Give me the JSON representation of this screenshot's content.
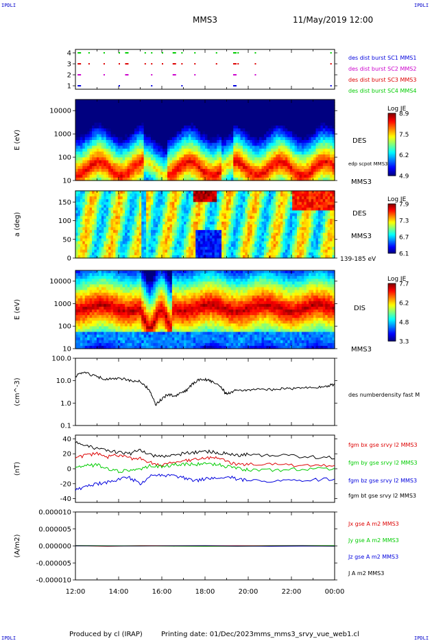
{
  "header": {
    "corner_label": "IPDLI",
    "spacecraft": "MMS3",
    "date_time": "11/May/2019 12:00"
  },
  "footer": {
    "produced_by": "Produced by cl (IRAP)",
    "printing_date": "Printing date: 01/Dec/2023",
    "filename": "mms_mms3_srvy_vue_web1.cl"
  },
  "colors": {
    "black": "#000000",
    "red": "#dd0000",
    "green": "#00cc00",
    "blue": "#0000dd",
    "magenta": "#cc00cc"
  },
  "chart_data": [
    {
      "panel": "burst",
      "type": "scatter",
      "x_ticks": [
        "12:00",
        "14:00",
        "16:00",
        "18:00",
        "20:00",
        "22:00",
        "00:00"
      ],
      "yticks": [
        "1",
        "2",
        "3",
        "4"
      ],
      "legend": [
        {
          "label": "des dist burst SC1 MMS1",
          "color": "#0000dd"
        },
        {
          "label": "des dist burst SC2 MMS2",
          "color": "#cc00cc"
        },
        {
          "label": "des dist burst SC3 MMS3",
          "color": "#dd0000"
        },
        {
          "label": "des dist burst SC4 MMS4",
          "color": "#00cc00"
        }
      ],
      "bursts_hours": [
        12.1,
        12.6,
        13.3,
        14.0,
        14.3,
        15.2,
        15.5,
        16.0,
        16.5,
        16.9,
        17.5,
        18.5,
        19.3,
        19.5,
        20.3,
        23.8
      ]
    },
    {
      "panel": "des_energy",
      "type": "heatmap",
      "ylabel": "E (eV)",
      "scale": "log",
      "yticks": [
        "10000",
        "1000",
        "100",
        "10"
      ],
      "ylim": [
        10,
        30000
      ],
      "label_right": "DES",
      "overlay_label": "edp scpot MMS3",
      "sc_label": "MMS3",
      "colorbar": {
        "title": "Log JE",
        "ticks": [
          "8.9",
          "7.5",
          "6.2",
          "4.9"
        ]
      }
    },
    {
      "panel": "des_pitch",
      "type": "heatmap",
      "ylabel": "a (deg)",
      "yticks": [
        "150",
        "100",
        "50",
        "0"
      ],
      "ylim": [
        0,
        180
      ],
      "label_right": "DES",
      "sc_label": "MMS3",
      "energy_range": "139-185 eV",
      "colorbar": {
        "title": "Log JE",
        "ticks": [
          "7.9",
          "7.3",
          "6.7",
          "6.1"
        ]
      }
    },
    {
      "panel": "dis_energy",
      "type": "heatmap",
      "ylabel": "E (eV)",
      "scale": "log",
      "yticks": [
        "10000",
        "1000",
        "100",
        "10"
      ],
      "ylim": [
        10,
        30000
      ],
      "label_right": "DIS",
      "sc_label": "MMS3",
      "colorbar": {
        "title": "Log JE",
        "ticks": [
          "7.7",
          "6.2",
          "4.8",
          "3.3"
        ]
      }
    },
    {
      "panel": "density",
      "type": "line",
      "ylabel": "(cm^-3)",
      "scale": "log",
      "yticks": [
        "100.0",
        "10.0",
        "1.0",
        "0.1"
      ],
      "ylim": [
        0.1,
        100
      ],
      "series": [
        {
          "name": "des numberdensity fast M",
          "color": "#000000",
          "x": [
            12.0,
            12.3,
            12.6,
            13.0,
            13.4,
            13.8,
            14.2,
            14.6,
            15.0,
            15.3,
            15.5,
            15.7,
            16.0,
            16.3,
            16.6,
            16.9,
            17.2,
            17.5,
            17.8,
            18.1,
            18.4,
            18.7,
            18.9,
            19.0,
            19.2,
            19.5,
            19.9,
            20.3,
            20.8,
            21.3,
            21.8,
            22.3,
            22.8,
            23.3,
            23.7,
            24.0
          ],
          "y": [
            15,
            22,
            20,
            15,
            12,
            13,
            12,
            10,
            9,
            5,
            2.5,
            0.8,
            1.5,
            2.5,
            2,
            3,
            4,
            8,
            12,
            11,
            8,
            6,
            3,
            2.5,
            3,
            4,
            3.5,
            3.8,
            4,
            4.2,
            4.5,
            4.5,
            4.8,
            5,
            6,
            7
          ]
        }
      ]
    },
    {
      "panel": "bfield",
      "type": "line",
      "ylabel": "(nT)",
      "yticks": [
        "40",
        "20",
        "0",
        "-20",
        "-40"
      ],
      "ylim": [
        -45,
        45
      ],
      "series": [
        {
          "name": "fgm bx gse srvy l2 MMS3",
          "color": "#dd0000",
          "x": [
            12.0,
            12.5,
            13.0,
            13.5,
            14.0,
            14.5,
            15.0,
            15.5,
            16.0,
            16.5,
            17.0,
            17.5,
            18.0,
            18.5,
            19.0,
            19.5,
            20.0,
            21.0,
            22.0,
            23.0,
            24.0
          ],
          "y": [
            15,
            18,
            20,
            16,
            18,
            14,
            14,
            8,
            5,
            9,
            10,
            12,
            14,
            14,
            10,
            5,
            6,
            6,
            5,
            4,
            4
          ]
        },
        {
          "name": "fgm by gse srvy l2 MMS3",
          "color": "#00cc00",
          "x": [
            12.0,
            12.5,
            13.0,
            13.5,
            14.0,
            14.5,
            15.0,
            15.5,
            16.0,
            16.5,
            17.0,
            17.5,
            18.0,
            18.5,
            19.0,
            19.5,
            20.0,
            21.0,
            22.0,
            23.0,
            24.0
          ],
          "y": [
            2,
            4,
            5,
            0,
            -4,
            -2,
            0,
            4,
            3,
            5,
            6,
            6,
            6,
            6,
            3,
            0,
            -1,
            -2,
            -1,
            0,
            0
          ]
        },
        {
          "name": "fgm bz gse srvy l2 MMS3",
          "color": "#0000dd",
          "x": [
            12.0,
            12.5,
            13.0,
            13.5,
            14.0,
            14.5,
            15.0,
            15.5,
            16.0,
            16.5,
            17.0,
            17.5,
            18.0,
            18.5,
            19.0,
            19.5,
            20.0,
            21.0,
            22.0,
            23.0,
            24.0
          ],
          "y": [
            -28,
            -24,
            -20,
            -18,
            -14,
            -12,
            -20,
            -10,
            -8,
            -10,
            -12,
            -16,
            -14,
            -12,
            -10,
            -14,
            -16,
            -17,
            -16,
            -15,
            -14
          ]
        },
        {
          "name": "fgm bt gse srvy l2 MMS3",
          "color": "#000000",
          "x": [
            12.0,
            12.5,
            13.0,
            13.5,
            14.0,
            14.5,
            15.0,
            15.5,
            16.0,
            16.5,
            17.0,
            17.5,
            18.0,
            18.5,
            19.0,
            19.5,
            20.0,
            21.0,
            22.0,
            23.0,
            24.0
          ],
          "y": [
            35,
            30,
            27,
            24,
            22,
            20,
            25,
            18,
            16,
            18,
            20,
            22,
            23,
            22,
            20,
            18,
            19,
            18,
            17,
            16,
            15
          ]
        }
      ]
    },
    {
      "panel": "current",
      "type": "line",
      "ylabel": "(A/m2)",
      "yticks": [
        "0.000010",
        "0.000005",
        "0.000000",
        "-0.000005",
        "-0.000010"
      ],
      "ylim": [
        -1e-05,
        1e-05
      ],
      "series": [
        {
          "name": "Jx gse A m2 MMS3",
          "color": "#dd0000",
          "x": [
            12,
            24
          ],
          "y": [
            0,
            0
          ]
        },
        {
          "name": "Jy gse A m2 MMS3",
          "color": "#00cc00",
          "x": [
            12,
            24
          ],
          "y": [
            0,
            0
          ]
        },
        {
          "name": "Jz gse A m2 MMS3",
          "color": "#0000dd",
          "x": [
            12,
            24
          ],
          "y": [
            0,
            0
          ]
        },
        {
          "name": "J A m2 MMS3",
          "color": "#000000",
          "x": [
            12,
            24
          ],
          "y": [
            0,
            0
          ]
        }
      ]
    }
  ]
}
